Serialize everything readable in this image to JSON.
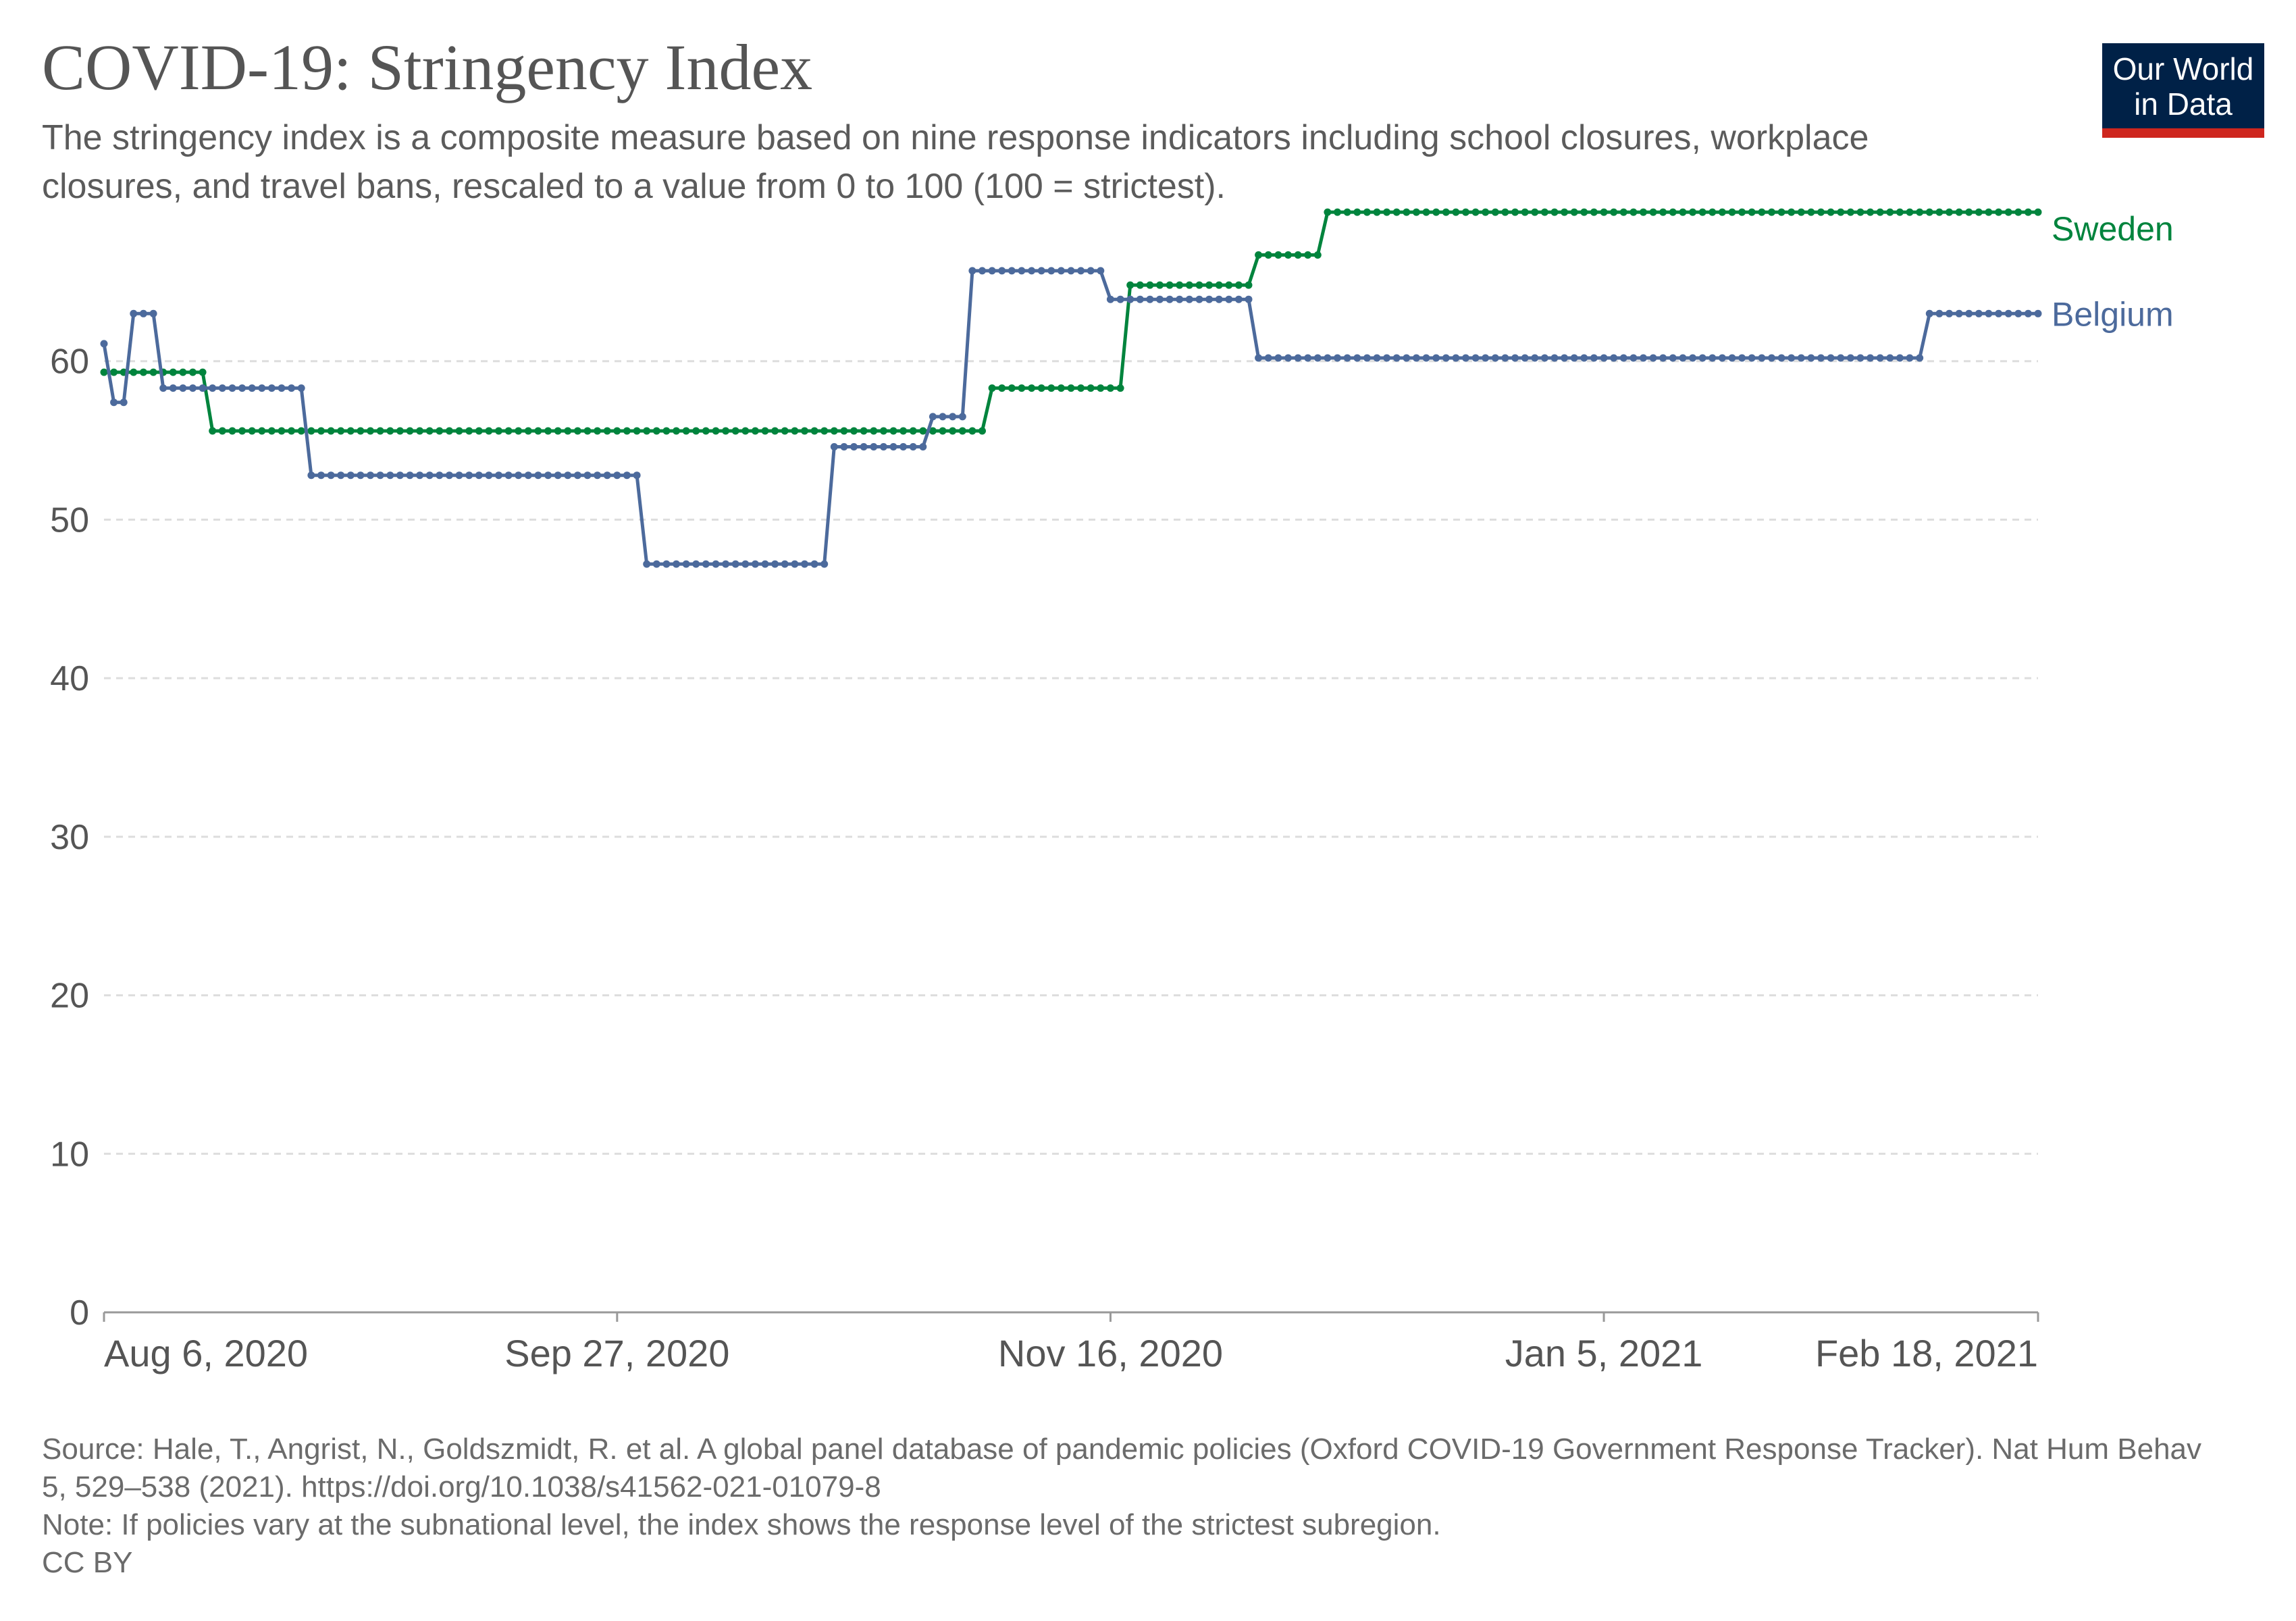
{
  "header": {
    "title": "COVID-19: Stringency Index",
    "subtitle": "The stringency index is a composite measure based on nine response indicators including school closures, workplace closures, and travel bans, rescaled to a value from 0 to 100 (100 = strictest)."
  },
  "logo": {
    "line1": "Our World",
    "line2": "in Data"
  },
  "footer": {
    "source": "Source: Hale, T., Angrist, N., Goldszmidt, R. et al. A global panel database of pandemic policies (Oxford COVID-19 Government Response Tracker). Nat Hum Behav 5, 529–538 (2021). https://doi.org/10.1038/s41562-021-01079-8",
    "note": "Note: If policies vary at the subnational level, the index shows the response level of the strictest subregion.",
    "license": "CC BY"
  },
  "colors": {
    "sweden": "#00843d",
    "belgium": "#4c6a9c",
    "grid": "#dddddd",
    "axis": "#999999",
    "text": "#555555"
  },
  "chart_data": {
    "type": "line",
    "x_start": "Aug 6, 2020",
    "x_end": "Feb 18, 2021",
    "x_ticks": [
      "Aug 6, 2020",
      "Sep 27, 2020",
      "Nov 16, 2020",
      "Jan 5, 2021",
      "Feb 18, 2021"
    ],
    "ylim": [
      0,
      70
    ],
    "y_ticks": [
      0,
      10,
      20,
      30,
      40,
      50,
      60
    ],
    "grid": true,
    "legend": "end-of-line labels",
    "series": [
      {
        "name": "Sweden",
        "steps": [
          {
            "from": "Aug 6, 2020",
            "to": "Aug 16, 2020",
            "value": 59.3
          },
          {
            "from": "Aug 17, 2020",
            "to": "Nov 3, 2020",
            "value": 55.6
          },
          {
            "from": "Nov 4, 2020",
            "to": "Nov 17, 2020",
            "value": 58.3
          },
          {
            "from": "Nov 18, 2020",
            "to": "Nov 30, 2020",
            "value": 64.8
          },
          {
            "from": "Dec 1, 2020",
            "to": "Dec 7, 2020",
            "value": 66.7
          },
          {
            "from": "Dec 8, 2020",
            "to": "Feb 18, 2021",
            "value": 69.4
          }
        ]
      },
      {
        "name": "Belgium",
        "steps": [
          {
            "from": "Aug 6, 2020",
            "to": "Aug 6, 2020",
            "value": 61.1
          },
          {
            "from": "Aug 7, 2020",
            "to": "Aug 8, 2020",
            "value": 57.4
          },
          {
            "from": "Aug 9, 2020",
            "to": "Aug 11, 2020",
            "value": 63.0
          },
          {
            "from": "Aug 12, 2020",
            "to": "Aug 26, 2020",
            "value": 58.3
          },
          {
            "from": "Aug 27, 2020",
            "to": "Sep 29, 2020",
            "value": 52.8
          },
          {
            "from": "Sep 30, 2020",
            "to": "Oct 18, 2020",
            "value": 47.2
          },
          {
            "from": "Oct 19, 2020",
            "to": "Oct 28, 2020",
            "value": 54.6
          },
          {
            "from": "Oct 29, 2020",
            "to": "Nov 1, 2020",
            "value": 56.5
          },
          {
            "from": "Nov 2, 2020",
            "to": "Nov 15, 2020",
            "value": 65.7
          },
          {
            "from": "Nov 16, 2020",
            "to": "Nov 30, 2020",
            "value": 63.9
          },
          {
            "from": "Dec 1, 2020",
            "to": "Feb 6, 2021",
            "value": 60.2
          },
          {
            "from": "Feb 7, 2021",
            "to": "Feb 18, 2021",
            "value": 63.0
          }
        ]
      }
    ]
  }
}
